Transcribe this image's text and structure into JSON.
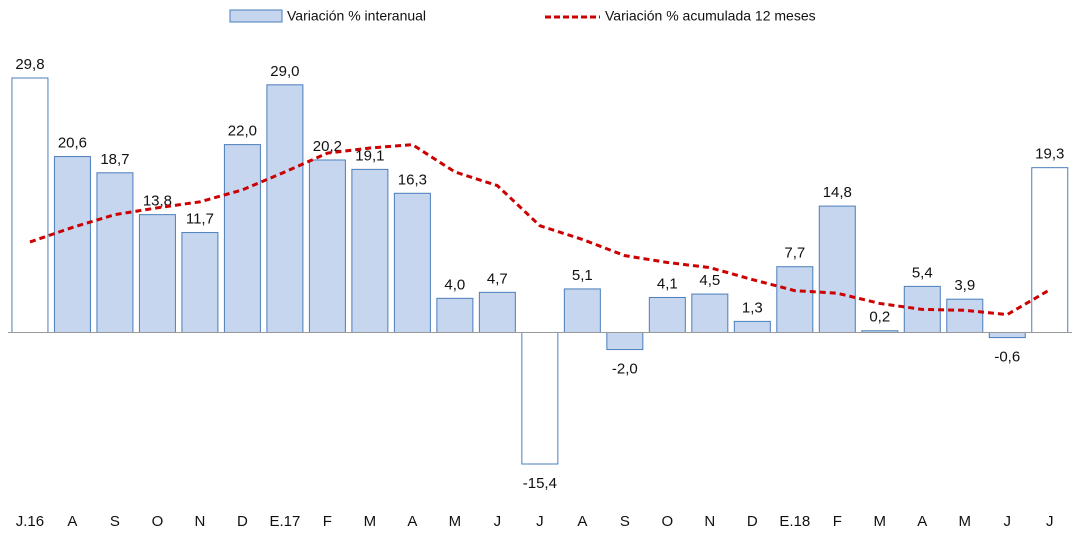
{
  "chart_data": {
    "type": "bar",
    "categories": [
      "J.16",
      "A",
      "S",
      "O",
      "N",
      "D",
      "E.17",
      "F",
      "M",
      "A",
      "M",
      "J",
      "J",
      "A",
      "S",
      "O",
      "N",
      "D",
      "E.18",
      "F",
      "M",
      "A",
      "M",
      "J",
      "J"
    ],
    "series": [
      {
        "name": "Variación % interanual",
        "type": "bar",
        "color": "#c6d6ef",
        "edge_color": "#4a7ebb",
        "colors": [
          "#ffffff",
          "#c6d6ef",
          "#c6d6ef",
          "#c6d6ef",
          "#c6d6ef",
          "#c6d6ef",
          "#c6d6ef",
          "#c6d6ef",
          "#c6d6ef",
          "#c6d6ef",
          "#c6d6ef",
          "#c6d6ef",
          "#ffffff",
          "#c6d6ef",
          "#c6d6ef",
          "#c6d6ef",
          "#c6d6ef",
          "#c6d6ef",
          "#c6d6ef",
          "#c6d6ef",
          "#c6d6ef",
          "#c6d6ef",
          "#c6d6ef",
          "#c6d6ef",
          "#ffffff"
        ],
        "values": [
          29.8,
          20.6,
          18.7,
          13.8,
          11.7,
          22.0,
          29.0,
          20.2,
          19.1,
          16.3,
          4.0,
          4.7,
          -15.4,
          5.1,
          -2.0,
          4.1,
          4.5,
          1.3,
          7.7,
          14.8,
          0.2,
          5.4,
          3.9,
          -0.6,
          19.3
        ],
        "value_labels": [
          "29,8",
          "20,6",
          "18,7",
          "13,8",
          "11,7",
          "22,0",
          "29,0",
          "20,2",
          "19,1",
          "16,3",
          "4,0",
          "4,7",
          "-15,4",
          "5,1",
          "-2,0",
          "4,1",
          "4,5",
          "1,3",
          "7,7",
          "14,8",
          "0,2",
          "5,4",
          "3,9",
          "-0,6",
          "19,3"
        ]
      },
      {
        "name": "Variación % acumulada 12 meses",
        "type": "line",
        "color": "#cc0000",
        "dashed": true,
        "values": [
          10.6,
          12.3,
          13.8,
          14.6,
          15.3,
          16.7,
          18.8,
          21.0,
          21.6,
          22.0,
          18.8,
          17.2,
          12.5,
          10.9,
          9.0,
          8.2,
          7.6,
          6.2,
          4.9,
          4.6,
          3.4,
          2.7,
          2.6,
          2.1,
          5.0
        ]
      }
    ]
  }
}
